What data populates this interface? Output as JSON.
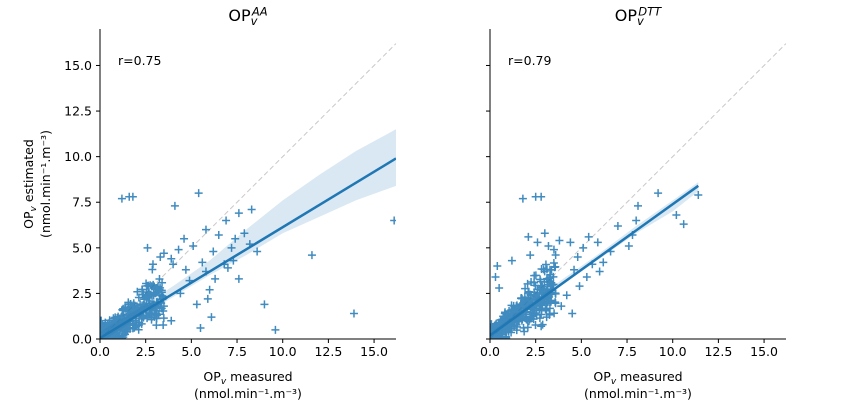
{
  "figure": {
    "sharey_label": "OP_v estimated (nmol.min⁻¹.m⁻³)"
  },
  "chart_data": [
    {
      "type": "scatter",
      "title": {
        "base": "OP",
        "sub": "v",
        "sup": "AA"
      },
      "annotation": "r=0.75",
      "xlabel": {
        "base": "OP",
        "sub": "v",
        "rest": " measured",
        "line2": "(nmol.min⁻¹.m⁻³)"
      },
      "ylabel": {
        "base": "OP",
        "sub": "v",
        "rest": " estimated",
        "line2": "(nmol.min⁻¹.m⁻³)"
      },
      "xlim": [
        0,
        16.2
      ],
      "ylim": [
        0,
        17
      ],
      "xticks": [
        "0.0",
        "2.5",
        "5.0",
        "7.5",
        "10.0",
        "12.5",
        "15.0"
      ],
      "yticks": [
        "0.0",
        "2.5",
        "5.0",
        "7.5",
        "10.0",
        "12.5",
        "15.0"
      ],
      "marker": "+",
      "color": "#1f77b4",
      "regression": {
        "x": [
          0,
          16.2
        ],
        "y": [
          0.05,
          9.9
        ]
      },
      "band_upper": [
        [
          0,
          0.4
        ],
        [
          2,
          1.6
        ],
        [
          4,
          2.9
        ],
        [
          6,
          4.3
        ],
        [
          8,
          6.0
        ],
        [
          10,
          7.6
        ],
        [
          12,
          9.0
        ],
        [
          14,
          10.3
        ],
        [
          16.2,
          11.5
        ]
      ],
      "band_lower": [
        [
          0,
          -0.2
        ],
        [
          2,
          1.1
        ],
        [
          4,
          2.3
        ],
        [
          6,
          3.5
        ],
        [
          8,
          4.6
        ],
        [
          10,
          5.8
        ],
        [
          12,
          6.7
        ],
        [
          14,
          7.6
        ],
        [
          16.2,
          8.4
        ]
      ],
      "identity_line": true,
      "cluster": {
        "n": 420,
        "xmax": 3.5,
        "noise": 0.55,
        "slope": 0.62,
        "seed": 11
      },
      "outliers": [
        [
          1.2,
          7.7
        ],
        [
          1.6,
          7.8
        ],
        [
          1.8,
          7.8
        ],
        [
          4.1,
          7.3
        ],
        [
          5.4,
          8.0
        ],
        [
          8.3,
          7.1
        ],
        [
          7.6,
          6.9
        ],
        [
          6.9,
          6.5
        ],
        [
          5.8,
          6.0
        ],
        [
          6.5,
          5.7
        ],
        [
          7.4,
          5.5
        ],
        [
          7.9,
          5.8
        ],
        [
          8.2,
          5.2
        ],
        [
          7.2,
          5.0
        ],
        [
          6.2,
          4.8
        ],
        [
          5.6,
          4.2
        ],
        [
          6.8,
          4.1
        ],
        [
          7.3,
          4.3
        ],
        [
          6.3,
          3.3
        ],
        [
          7.6,
          3.3
        ],
        [
          6.0,
          2.7
        ],
        [
          8.6,
          4.8
        ],
        [
          4.9,
          3.2
        ],
        [
          5.3,
          1.9
        ],
        [
          6.1,
          1.2
        ],
        [
          3.9,
          1.0
        ],
        [
          5.5,
          0.6
        ],
        [
          9.0,
          1.9
        ],
        [
          9.6,
          0.5
        ],
        [
          11.6,
          4.6
        ],
        [
          13.9,
          1.4
        ],
        [
          16.1,
          6.5
        ],
        [
          4.6,
          5.5
        ],
        [
          5.1,
          5.1
        ],
        [
          4.3,
          4.9
        ],
        [
          3.9,
          4.4
        ],
        [
          5.8,
          3.7
        ],
        [
          4.7,
          3.8
        ],
        [
          3.3,
          4.5
        ],
        [
          2.9,
          4.1
        ],
        [
          2.6,
          5.0
        ],
        [
          3.5,
          4.7
        ],
        [
          4.4,
          2.5
        ],
        [
          5.9,
          2.2
        ],
        [
          7.0,
          3.9
        ],
        [
          4.0,
          4.1
        ],
        [
          2.3,
          2.7
        ],
        [
          3.1,
          2.8
        ]
      ]
    },
    {
      "type": "scatter",
      "title": {
        "base": "OP",
        "sub": "v",
        "sup": "DTT"
      },
      "annotation": "r=0.79",
      "xlabel": {
        "base": "OP",
        "sub": "v",
        "rest": " measured",
        "line2": "(nmol.min⁻¹.m⁻³)"
      },
      "xlim": [
        0,
        16.2
      ],
      "ylim": [
        0,
        17
      ],
      "xticks": [
        "0.0",
        "2.5",
        "5.0",
        "7.5",
        "10.0",
        "12.5",
        "15.0"
      ],
      "yticks": [],
      "marker": "+",
      "color": "#1f77b4",
      "regression": {
        "x": [
          0,
          11.4
        ],
        "y": [
          0.2,
          8.4
        ]
      },
      "band_upper": [
        [
          0,
          0.35
        ],
        [
          2,
          1.8
        ],
        [
          4,
          3.3
        ],
        [
          6,
          4.7
        ],
        [
          8,
          6.2
        ],
        [
          10,
          7.6
        ],
        [
          11.4,
          8.6
        ]
      ],
      "band_lower": [
        [
          0,
          0.05
        ],
        [
          2,
          1.6
        ],
        [
          4,
          3.0
        ],
        [
          6,
          4.4
        ],
        [
          8,
          5.8
        ],
        [
          10,
          7.0
        ],
        [
          11.4,
          8.1
        ]
      ],
      "identity_line": true,
      "cluster": {
        "n": 460,
        "xmax": 3.6,
        "noise": 0.5,
        "slope": 0.8,
        "seed": 23
      },
      "outliers": [
        [
          1.8,
          7.7
        ],
        [
          2.5,
          7.8
        ],
        [
          2.8,
          7.8
        ],
        [
          9.2,
          8.0
        ],
        [
          11.4,
          7.9
        ],
        [
          8.1,
          7.3
        ],
        [
          10.2,
          6.8
        ],
        [
          10.6,
          6.3
        ],
        [
          8.0,
          6.5
        ],
        [
          7.0,
          6.2
        ],
        [
          7.6,
          5.1
        ],
        [
          7.8,
          5.7
        ],
        [
          6.6,
          4.8
        ],
        [
          6.2,
          4.2
        ],
        [
          5.9,
          5.3
        ],
        [
          5.4,
          5.6
        ],
        [
          5.1,
          5.0
        ],
        [
          4.8,
          4.5
        ],
        [
          4.4,
          5.3
        ],
        [
          3.8,
          5.4
        ],
        [
          3.5,
          4.9
        ],
        [
          3.2,
          5.1
        ],
        [
          2.6,
          5.3
        ],
        [
          3.0,
          5.8
        ],
        [
          4.6,
          3.8
        ],
        [
          5.3,
          3.4
        ],
        [
          4.9,
          2.9
        ],
        [
          4.2,
          2.4
        ],
        [
          3.9,
          1.8
        ],
        [
          4.5,
          1.4
        ],
        [
          3.1,
          1.2
        ],
        [
          2.8,
          0.7
        ],
        [
          0.4,
          4.0
        ],
        [
          0.3,
          3.4
        ],
        [
          0.5,
          2.8
        ],
        [
          1.2,
          4.3
        ],
        [
          2.2,
          4.6
        ],
        [
          5.6,
          4.1
        ],
        [
          6.0,
          3.7
        ],
        [
          2.1,
          5.6
        ]
      ]
    }
  ]
}
